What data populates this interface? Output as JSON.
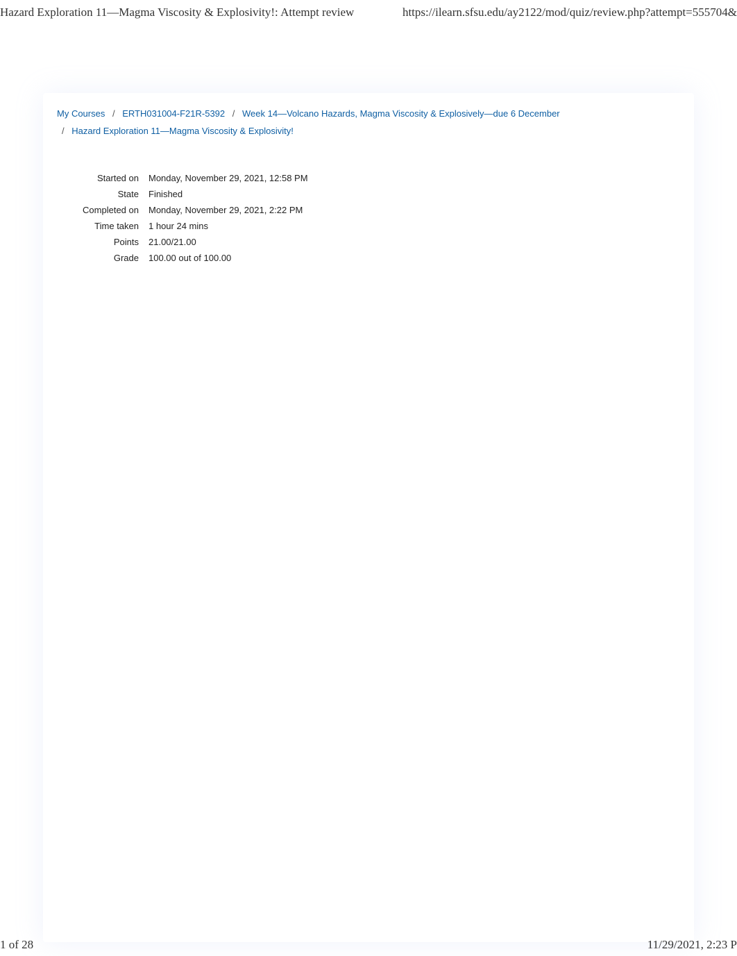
{
  "header": {
    "left": "Hazard Exploration 11—Magma Viscosity & Explosivity!: Attempt review",
    "right": "https://ilearn.sfsu.edu/ay2122/mod/quiz/review.php?attempt=555704&"
  },
  "footer": {
    "left": "1 of 28",
    "right": "11/29/2021, 2:23 P"
  },
  "breadcrumb": {
    "items": [
      {
        "label": "My Courses"
      },
      {
        "label": "ERTH031004-F21R-5392"
      },
      {
        "label": "Week 14—Volcano Hazards, Magma Viscosity & Explosively—due 6 December"
      },
      {
        "label": "Hazard Exploration 11—Magma Viscosity & Explosivity!"
      }
    ],
    "separator": "/"
  },
  "summary": {
    "rows": [
      {
        "label": "Started on",
        "value": "Monday, November 29, 2021, 12:58 PM"
      },
      {
        "label": "State",
        "value": "Finished"
      },
      {
        "label": "Completed on",
        "value": "Monday, November 29, 2021, 2:22 PM"
      },
      {
        "label": "Time taken",
        "value": "1 hour 24 mins"
      },
      {
        "label": "Points",
        "value": "21.00/21.00"
      },
      {
        "label": "Grade",
        "value": "100.00  out of 100.00"
      }
    ]
  },
  "colors": {
    "link": "#0f5fa3",
    "text": "#222222",
    "header_text": "#333333",
    "background": "#ffffff",
    "shadow": "rgba(180,195,235,0.22)"
  }
}
